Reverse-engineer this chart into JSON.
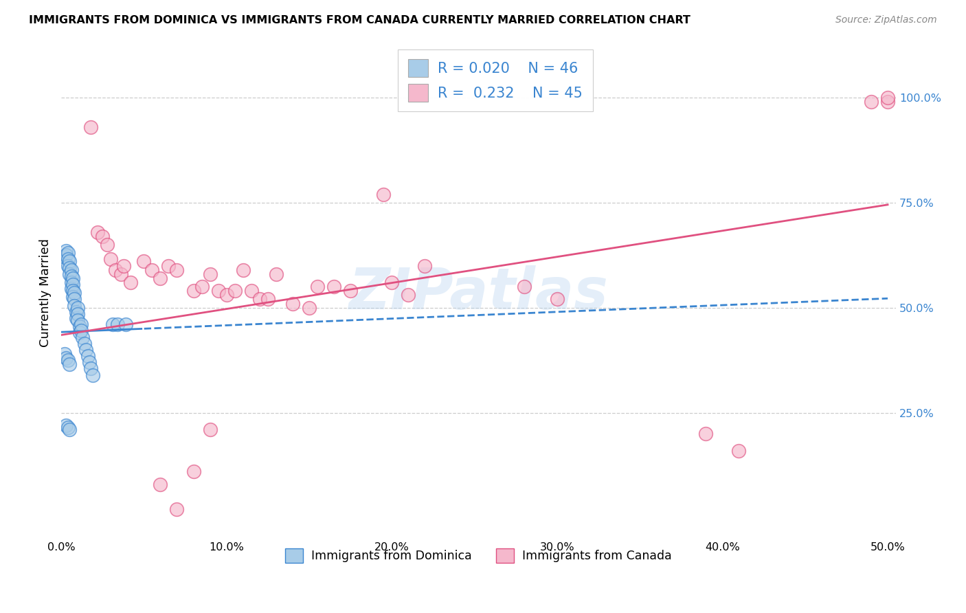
{
  "title": "IMMIGRANTS FROM DOMINICA VS IMMIGRANTS FROM CANADA CURRENTLY MARRIED CORRELATION CHART",
  "source": "Source: ZipAtlas.com",
  "ylabel": "Currently Married",
  "xlim": [
    0.0,
    0.505
  ],
  "ylim": [
    -0.05,
    1.12
  ],
  "ytick_labels": [
    "25.0%",
    "50.0%",
    "75.0%",
    "100.0%"
  ],
  "ytick_vals": [
    0.25,
    0.5,
    0.75,
    1.0
  ],
  "xtick_labels": [
    "0.0%",
    "10.0%",
    "20.0%",
    "30.0%",
    "40.0%",
    "50.0%"
  ],
  "xtick_vals": [
    0.0,
    0.1,
    0.2,
    0.3,
    0.4,
    0.5
  ],
  "blue_R": "0.020",
  "blue_N": "46",
  "pink_R": "0.232",
  "pink_N": "45",
  "blue_dot_color": "#a8cce8",
  "pink_dot_color": "#f5b8cc",
  "blue_edge_color": "#3a85d0",
  "pink_edge_color": "#e05080",
  "blue_line_color": "#3a85d0",
  "pink_line_color": "#e05080",
  "blue_tick_color": "#3a85d0",
  "watermark": "ZIPatlas",
  "background_color": "#ffffff",
  "grid_color": "#cccccc",
  "blue_x": [
    0.002,
    0.003,
    0.003,
    0.004,
    0.004,
    0.004,
    0.005,
    0.005,
    0.005,
    0.006,
    0.006,
    0.006,
    0.006,
    0.007,
    0.007,
    0.007,
    0.007,
    0.008,
    0.008,
    0.008,
    0.009,
    0.009,
    0.01,
    0.01,
    0.01,
    0.011,
    0.011,
    0.012,
    0.012,
    0.013,
    0.014,
    0.015,
    0.016,
    0.017,
    0.018,
    0.019,
    0.002,
    0.003,
    0.004,
    0.005,
    0.003,
    0.004,
    0.005,
    0.031,
    0.034,
    0.039
  ],
  "blue_y": [
    0.62,
    0.635,
    0.625,
    0.63,
    0.615,
    0.6,
    0.61,
    0.595,
    0.58,
    0.59,
    0.575,
    0.56,
    0.545,
    0.57,
    0.555,
    0.54,
    0.525,
    0.535,
    0.52,
    0.505,
    0.49,
    0.475,
    0.5,
    0.485,
    0.47,
    0.455,
    0.44,
    0.46,
    0.445,
    0.43,
    0.415,
    0.4,
    0.385,
    0.37,
    0.355,
    0.34,
    0.39,
    0.38,
    0.375,
    0.365,
    0.22,
    0.215,
    0.21,
    0.46,
    0.46,
    0.46
  ],
  "pink_x": [
    0.018,
    0.022,
    0.025,
    0.028,
    0.03,
    0.033,
    0.036,
    0.038,
    0.042,
    0.05,
    0.055,
    0.06,
    0.065,
    0.07,
    0.08,
    0.085,
    0.09,
    0.095,
    0.1,
    0.105,
    0.11,
    0.115,
    0.12,
    0.125,
    0.13,
    0.14,
    0.15,
    0.155,
    0.165,
    0.175,
    0.2,
    0.21,
    0.22,
    0.06,
    0.07,
    0.08,
    0.09,
    0.39,
    0.41,
    0.5,
    0.195,
    0.28,
    0.3,
    0.49,
    0.5
  ],
  "pink_y": [
    0.93,
    0.68,
    0.67,
    0.65,
    0.615,
    0.59,
    0.58,
    0.6,
    0.56,
    0.61,
    0.59,
    0.57,
    0.6,
    0.59,
    0.54,
    0.55,
    0.58,
    0.54,
    0.53,
    0.54,
    0.59,
    0.54,
    0.52,
    0.52,
    0.58,
    0.51,
    0.5,
    0.55,
    0.55,
    0.54,
    0.56,
    0.53,
    0.6,
    0.08,
    0.02,
    0.11,
    0.21,
    0.2,
    0.16,
    0.99,
    0.77,
    0.55,
    0.52,
    0.99,
    1.0
  ],
  "blue_line_intercept": 0.442,
  "blue_line_slope": 0.16,
  "pink_line_intercept": 0.435,
  "pink_line_slope": 0.62
}
